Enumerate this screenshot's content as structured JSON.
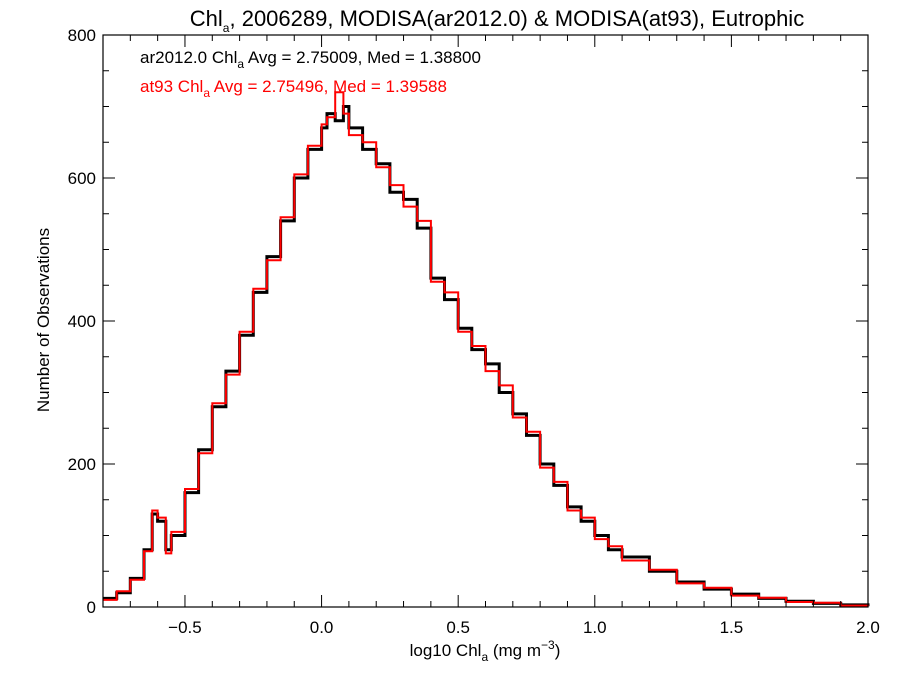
{
  "chart_data": {
    "type": "line",
    "title": {
      "pre": "Chl",
      "sub": "a",
      "post": ", 2006289, MODISA(ar2012.0) & MODISA(at93), Eutrophic"
    },
    "xlabel": {
      "pre": "log10 Chl",
      "sub": "a",
      "post": " (mg m",
      "sup": "−3",
      "end": ")"
    },
    "ylabel": "Number of Observations",
    "xlim": [
      -0.8,
      2.0
    ],
    "ylim": [
      0,
      800
    ],
    "xticks": [
      -0.5,
      0.0,
      0.5,
      1.0,
      1.5,
      2.0
    ],
    "xtick_labels": [
      "−0.5",
      "0.0",
      "0.5",
      "1.0",
      "1.5",
      "2.0"
    ],
    "yticks": [
      0,
      200,
      400,
      600,
      800
    ],
    "ytick_labels": [
      "0",
      "200",
      "400",
      "600",
      "800"
    ],
    "grid": false,
    "annotations": [
      {
        "series": "ar2012.0",
        "pre": "ar2012.0 Chl",
        "sub": "a",
        "post": " Avg = 2.75009, Med = 1.38800",
        "color": "#000000"
      },
      {
        "series": "at93",
        "pre": "at93 Chl",
        "sub": "a",
        "post": " Avg = 2.75496, Med = 1.39588",
        "color": "#ff0000"
      }
    ],
    "series": [
      {
        "color": "#000000",
        "x": [
          -0.8,
          -0.75,
          -0.7,
          -0.65,
          -0.62,
          -0.6,
          -0.57,
          -0.55,
          -0.5,
          -0.45,
          -0.4,
          -0.35,
          -0.3,
          -0.25,
          -0.2,
          -0.15,
          -0.1,
          -0.05,
          0.0,
          0.02,
          0.05,
          0.08,
          0.1,
          0.15,
          0.2,
          0.25,
          0.3,
          0.35,
          0.4,
          0.45,
          0.5,
          0.55,
          0.6,
          0.65,
          0.7,
          0.75,
          0.8,
          0.85,
          0.9,
          0.95,
          1.0,
          1.05,
          1.1,
          1.2,
          1.3,
          1.4,
          1.5,
          1.6,
          1.7,
          1.8,
          1.9,
          2.0
        ],
        "y": [
          12,
          20,
          40,
          80,
          130,
          120,
          80,
          100,
          160,
          220,
          280,
          330,
          380,
          440,
          490,
          540,
          600,
          640,
          670,
          690,
          680,
          700,
          670,
          640,
          620,
          580,
          570,
          530,
          460,
          430,
          390,
          360,
          340,
          300,
          270,
          240,
          200,
          170,
          140,
          120,
          100,
          80,
          70,
          50,
          35,
          25,
          18,
          12,
          8,
          5,
          3,
          1
        ]
      },
      {
        "color": "#ff0000",
        "x": [
          -0.8,
          -0.75,
          -0.7,
          -0.65,
          -0.62,
          -0.6,
          -0.57,
          -0.55,
          -0.5,
          -0.45,
          -0.4,
          -0.35,
          -0.3,
          -0.25,
          -0.2,
          -0.15,
          -0.1,
          -0.05,
          0.0,
          0.02,
          0.05,
          0.08,
          0.1,
          0.15,
          0.2,
          0.25,
          0.3,
          0.35,
          0.4,
          0.45,
          0.5,
          0.55,
          0.6,
          0.65,
          0.7,
          0.75,
          0.8,
          0.85,
          0.9,
          0.95,
          1.0,
          1.05,
          1.1,
          1.2,
          1.3,
          1.4,
          1.5,
          1.6,
          1.7,
          1.8,
          1.9,
          2.0
        ],
        "y": [
          10,
          22,
          38,
          78,
          135,
          125,
          75,
          105,
          165,
          215,
          285,
          325,
          385,
          445,
          485,
          545,
          605,
          645,
          675,
          685,
          720,
          690,
          660,
          650,
          615,
          590,
          560,
          540,
          455,
          440,
          385,
          365,
          330,
          310,
          265,
          245,
          195,
          175,
          135,
          125,
          95,
          85,
          65,
          52,
          33,
          27,
          16,
          13,
          7,
          6,
          2,
          1
        ]
      }
    ]
  }
}
